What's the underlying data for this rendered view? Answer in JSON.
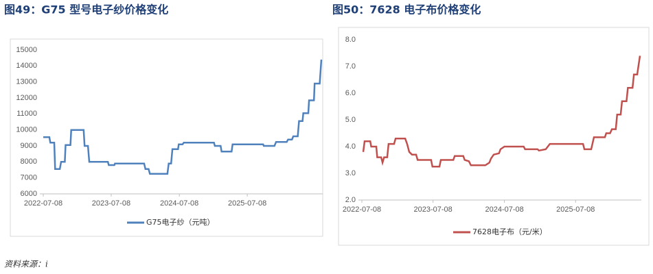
{
  "chart_data": [
    {
      "type": "line",
      "title": "图49：G75 型号电子纱价格变化",
      "x": [
        "2022-07-08",
        "2022-08-10",
        "2022-08-15",
        "2022-09-05",
        "2022-09-10",
        "2022-10-05",
        "2022-10-12",
        "2022-11-01",
        "2022-11-05",
        "2022-12-01",
        "2022-12-05",
        "2023-02-10",
        "2023-02-15",
        "2023-03-05",
        "2023-03-12",
        "2023-06-20",
        "2023-06-25",
        "2023-07-25",
        "2023-07-28",
        "2024-01-01",
        "2024-01-08",
        "2024-01-25",
        "2024-02-01",
        "2024-05-05",
        "2024-05-12",
        "2024-05-25",
        "2024-06-01",
        "2024-07-01",
        "2024-07-05",
        "2024-07-25",
        "2024-08-01",
        "2025-01-10",
        "2025-01-15",
        "2025-02-15",
        "2025-02-20",
        "2025-04-15",
        "2025-04-20",
        "2025-10-01",
        "2025-10-05",
        "2025-12-01",
        "2025-12-10",
        "2026-02-05",
        "2026-02-12",
        "2026-03-05",
        "2026-03-12",
        "2026-04-05",
        "2026-04-12",
        "2026-05-01",
        "2026-05-05",
        "2026-06-01",
        "2026-06-05",
        "2026-07-01",
        "2026-07-05",
        "2026-08-01",
        "2026-08-10"
      ],
      "series": [
        {
          "name": "G75电子纱（元吨）",
          "color": "#4f81bd",
          "values": [
            9550,
            9550,
            9200,
            9200,
            7550,
            7550,
            8000,
            8000,
            9050,
            9050,
            10000,
            10000,
            9000,
            9000,
            8000,
            8000,
            7800,
            7800,
            7900,
            7900,
            7550,
            7550,
            7250,
            7250,
            7900,
            7900,
            8800,
            8800,
            9100,
            9100,
            9200,
            9200,
            9000,
            9000,
            8650,
            8650,
            9100,
            9100,
            9000,
            9000,
            9250,
            9250,
            9400,
            9400,
            9600,
            9600,
            10550,
            10550,
            11050,
            11050,
            11850,
            11850,
            12900,
            12900,
            14400
          ]
        }
      ],
      "xlim": [
        "2022-07-08",
        "2026-08-10"
      ],
      "xticks": [
        "2022-07-08",
        "2023-07-08",
        "2024-07-08",
        "2025-07-08"
      ],
      "ylim": [
        6000,
        15000
      ],
      "yticks": [
        6000,
        7000,
        8000,
        9000,
        10000,
        11000,
        12000,
        13000,
        14000,
        15000
      ],
      "grid": false
    },
    {
      "type": "line",
      "title": "图50：7628 电子布价格变化",
      "x": [
        "2022-07-15",
        "2022-07-22",
        "2022-08-20",
        "2022-08-25",
        "2022-09-20",
        "2022-09-25",
        "2022-10-15",
        "2022-10-22",
        "2022-10-30",
        "2022-11-15",
        "2022-11-22",
        "2022-12-20",
        "2022-12-28",
        "2023-02-15",
        "2023-02-25",
        "2023-03-08",
        "2023-03-22",
        "2023-04-12",
        "2023-04-20",
        "2023-06-28",
        "2023-07-05",
        "2023-08-10",
        "2023-08-17",
        "2023-10-20",
        "2023-10-27",
        "2023-12-10",
        "2023-12-17",
        "2024-01-08",
        "2024-01-18",
        "2024-04-01",
        "2024-04-22",
        "2024-04-30",
        "2024-05-14",
        "2024-06-10",
        "2024-06-18",
        "2024-07-08",
        "2024-10-15",
        "2024-10-22",
        "2024-12-25",
        "2025-01-01",
        "2025-02-05",
        "2025-02-26",
        "2025-08-15",
        "2025-08-22",
        "2025-09-26",
        "2025-10-10",
        "2025-12-05",
        "2025-12-12",
        "2026-01-01",
        "2026-01-10",
        "2026-01-30",
        "2026-02-06",
        "2026-02-24",
        "2026-03-03",
        "2026-03-26",
        "2026-04-02",
        "2026-04-26",
        "2026-05-03",
        "2026-05-20",
        "2026-06-03"
      ],
      "series": [
        {
          "name": "7628电子布（元/米）",
          "color": "#c0504d",
          "values": [
            3.8,
            4.2,
            4.2,
            4.0,
            4.0,
            3.6,
            3.6,
            3.4,
            3.6,
            3.6,
            4.1,
            4.1,
            4.3,
            4.3,
            4.1,
            3.8,
            3.7,
            3.7,
            3.5,
            3.5,
            3.25,
            3.25,
            3.5,
            3.5,
            3.65,
            3.65,
            3.5,
            3.45,
            3.3,
            3.3,
            3.4,
            3.55,
            3.7,
            3.75,
            3.9,
            4.0,
            4.0,
            3.9,
            3.9,
            3.85,
            3.9,
            4.1,
            4.1,
            3.9,
            3.9,
            4.35,
            4.35,
            4.5,
            4.5,
            4.65,
            4.65,
            5.2,
            5.2,
            5.7,
            5.7,
            6.2,
            6.2,
            6.7,
            6.7,
            7.4
          ]
        }
      ],
      "xlim": [
        "2022-07-08",
        "2026-06-03"
      ],
      "xticks": [
        "2022-07-08",
        "2023-07-08",
        "2024-07-08",
        "2025-07-08"
      ],
      "ylim": [
        2,
        8
      ],
      "yticks": [
        {
          "value": 2,
          "label": "2.0"
        },
        {
          "value": 3,
          "label": "3.0"
        },
        {
          "value": 4,
          "label": "4.0"
        },
        {
          "value": 5,
          "label": "5.0"
        },
        {
          "value": 6,
          "label": "6.0"
        },
        {
          "value": 7,
          "label": "7.0"
        },
        {
          "value": 8,
          "label": "8.0"
        }
      ],
      "grid": false
    }
  ],
  "source": "资料来源：i"
}
